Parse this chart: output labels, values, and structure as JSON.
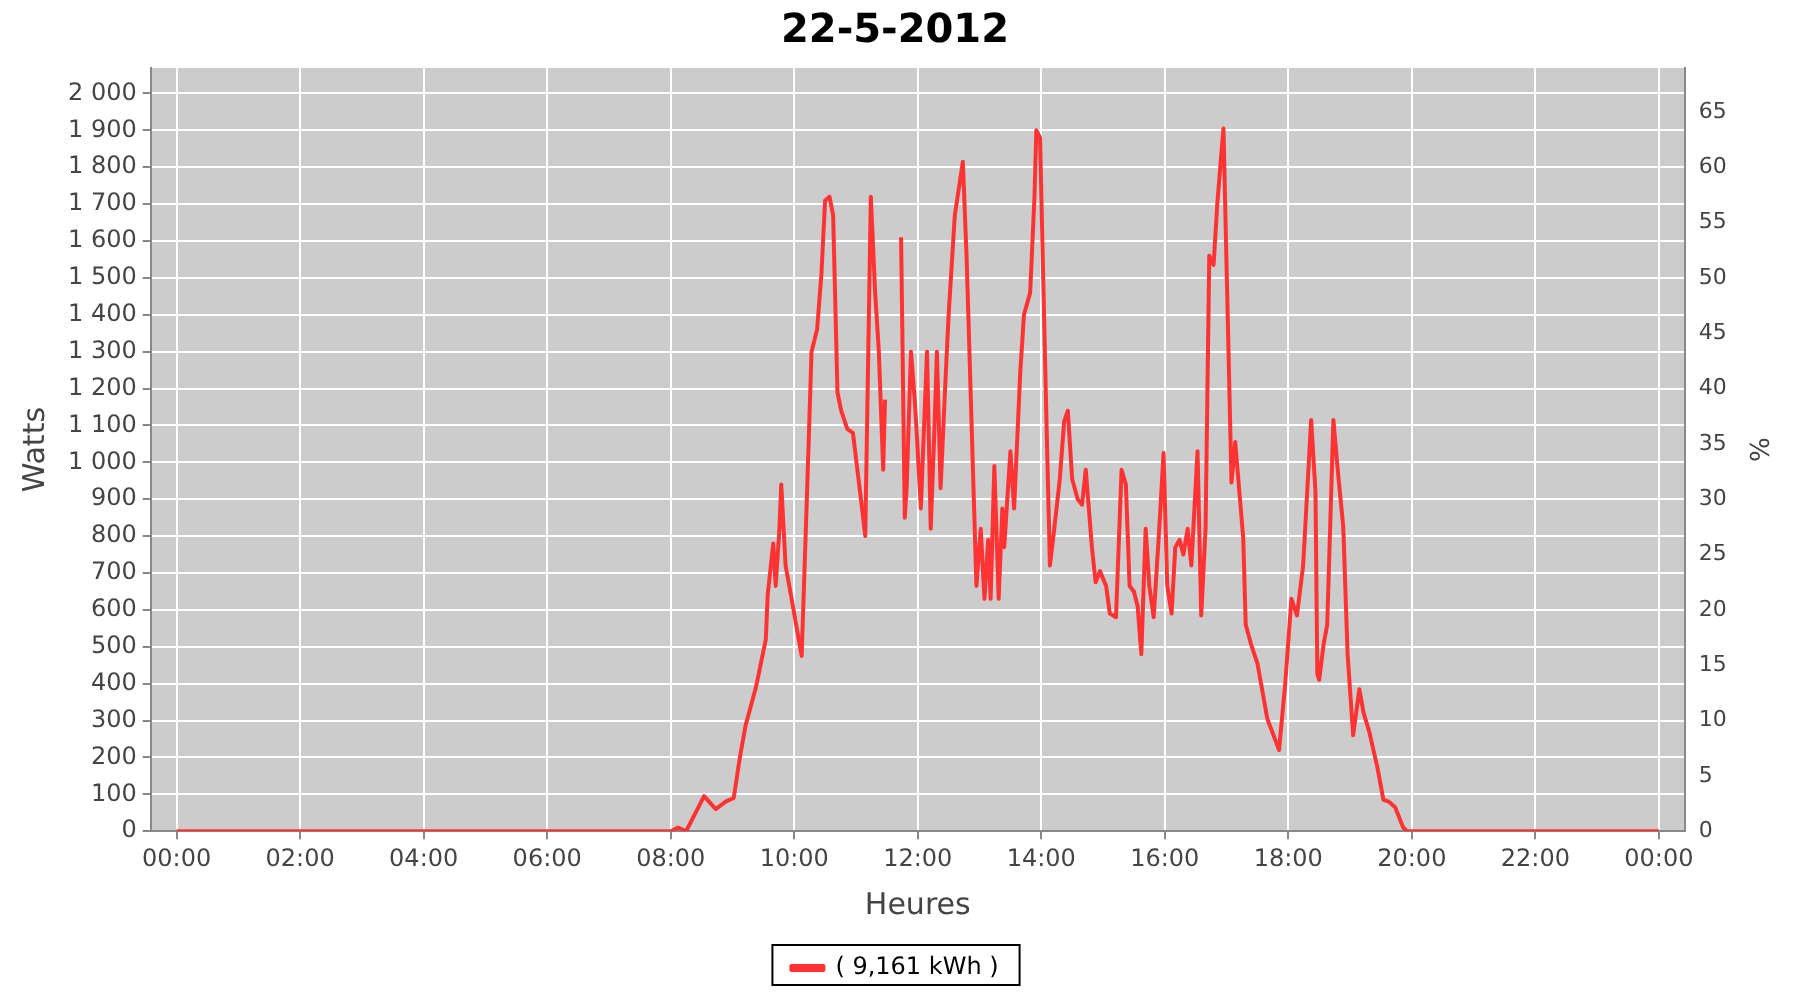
{
  "chart_data": {
    "type": "line",
    "title": "22-5-2012",
    "xlabel": "Heures",
    "ylabel": "Watts",
    "y2label": "%",
    "x": [
      0,
      8.0,
      8.12,
      8.25,
      8.54,
      8.73,
      8.89,
      9.02,
      9.12,
      9.21,
      9.38,
      9.54,
      9.57,
      9.66,
      9.7,
      9.76,
      9.79,
      9.86,
      9.92,
      10.12,
      10.21,
      10.28,
      10.37,
      10.44,
      10.5,
      10.57,
      10.63,
      10.7,
      10.76,
      10.86,
      10.95,
      11.08,
      11.15,
      11.24,
      11.31,
      11.37,
      11.44,
      11.47,
      11.63,
      11.69,
      11.73,
      11.79,
      11.82,
      11.89,
      11.95,
      11.98,
      12.05,
      12.15,
      12.21,
      12.27,
      12.31,
      12.37,
      12.44,
      12.5,
      12.6,
      12.73,
      12.79,
      12.95,
      13.02,
      13.08,
      13.14,
      13.18,
      13.24,
      13.31,
      13.37,
      13.4,
      13.5,
      13.56,
      13.66,
      13.72,
      13.82,
      13.89,
      13.92,
      13.98,
      14.08,
      14.14,
      14.21,
      14.3,
      14.37,
      14.43,
      14.5,
      14.59,
      14.66,
      14.72,
      14.82,
      14.88,
      14.95,
      15.05,
      15.11,
      15.21,
      15.3,
      15.37,
      15.43,
      15.5,
      15.56,
      15.62,
      15.69,
      15.75,
      15.82,
      15.91,
      15.98,
      16.04,
      16.11,
      16.17,
      16.24,
      16.3,
      16.37,
      16.43,
      16.53,
      16.59,
      16.66,
      16.72,
      16.79,
      16.85,
      16.91,
      16.95,
      17.01,
      17.08,
      17.14,
      17.27,
      17.31,
      17.4,
      17.5,
      17.66,
      17.85,
      17.95,
      18.05,
      18.14,
      18.24,
      18.37,
      18.44,
      18.47,
      18.5,
      18.57,
      18.63,
      18.73,
      18.8,
      18.89,
      18.96,
      19.05,
      19.15,
      19.22,
      19.31,
      19.44,
      19.54,
      19.63,
      19.73,
      19.86,
      19.92,
      24
    ],
    "series": [
      {
        "name": "( 9,161 kWh )",
        "color": "#ff3333",
        "values": [
          0,
          0,
          10,
          0,
          95,
          60,
          80,
          90,
          200,
          285,
          390,
          520,
          640,
          780,
          665,
          820,
          940,
          720,
          665,
          475,
          930,
          1300,
          1360,
          1510,
          1710,
          1720,
          1670,
          1190,
          1140,
          1090,
          1080,
          900,
          800,
          1720,
          1460,
          1300,
          980,
          1170,
          null,
          null,
          1610,
          850,
          930,
          1300,
          1170,
          1090,
          875,
          1300,
          820,
          1090,
          1300,
          930,
          1190,
          1400,
          1670,
          1815,
          1560,
          665,
          820,
          630,
          790,
          630,
          990,
          630,
          875,
          770,
          1030,
          875,
          1245,
          1400,
          1460,
          1720,
          1900,
          1880,
          1140,
          720,
          820,
          955,
          1110,
          1140,
          955,
          900,
          885,
          980,
          770,
          675,
          705,
          665,
          590,
          580,
          980,
          940,
          665,
          650,
          610,
          480,
          820,
          665,
          580,
          820,
          1025,
          665,
          590,
          770,
          790,
          750,
          820,
          720,
          1030,
          585,
          820,
          1560,
          1535,
          1700,
          1825,
          1905,
          1460,
          945,
          1055,
          795,
          560,
          505,
          455,
          305,
          220,
          400,
          630,
          585,
          720,
          1115,
          920,
          425,
          410,
          505,
          560,
          1115,
          980,
          825,
          480,
          260,
          385,
          320,
          270,
          175,
          85,
          80,
          65,
          10,
          0,
          0
        ]
      }
    ],
    "xlim": [
      -0.42,
      24.42
    ],
    "xticks": [
      {
        "value": 0,
        "label": "00:00"
      },
      {
        "value": 2,
        "label": "02:00"
      },
      {
        "value": 4,
        "label": "04:00"
      },
      {
        "value": 6,
        "label": "06:00"
      },
      {
        "value": 8,
        "label": "08:00"
      },
      {
        "value": 10,
        "label": "10:00"
      },
      {
        "value": 12,
        "label": "12:00"
      },
      {
        "value": 14,
        "label": "14:00"
      },
      {
        "value": 16,
        "label": "16:00"
      },
      {
        "value": 18,
        "label": "18:00"
      },
      {
        "value": 20,
        "label": "20:00"
      },
      {
        "value": 22,
        "label": "22:00"
      },
      {
        "value": 24,
        "label": "00:00"
      }
    ],
    "ylim": [
      0,
      2069
    ],
    "yticks": [
      0,
      100,
      200,
      300,
      400,
      500,
      600,
      700,
      800,
      900,
      {
        "value": 1000,
        "label": "1 000"
      },
      {
        "value": 1100,
        "label": "1 100"
      },
      {
        "value": 1200,
        "label": "1 200"
      },
      {
        "value": 1300,
        "label": "1 300"
      },
      {
        "value": 1400,
        "label": "1 400"
      },
      {
        "value": 1500,
        "label": "1 500"
      },
      {
        "value": 1600,
        "label": "1 600"
      },
      {
        "value": 1700,
        "label": "1 700"
      },
      {
        "value": 1800,
        "label": "1 800"
      },
      {
        "value": 1900,
        "label": "1 900"
      },
      {
        "value": 2000,
        "label": "2 000"
      }
    ],
    "y2lim": [
      0,
      68.97
    ],
    "y2ticks": [
      0,
      5,
      10,
      15,
      20,
      25,
      30,
      35,
      40,
      45,
      50,
      55,
      60,
      65
    ],
    "grid": true,
    "legend": "bottom",
    "marker": "none",
    "line_style": "solid"
  }
}
